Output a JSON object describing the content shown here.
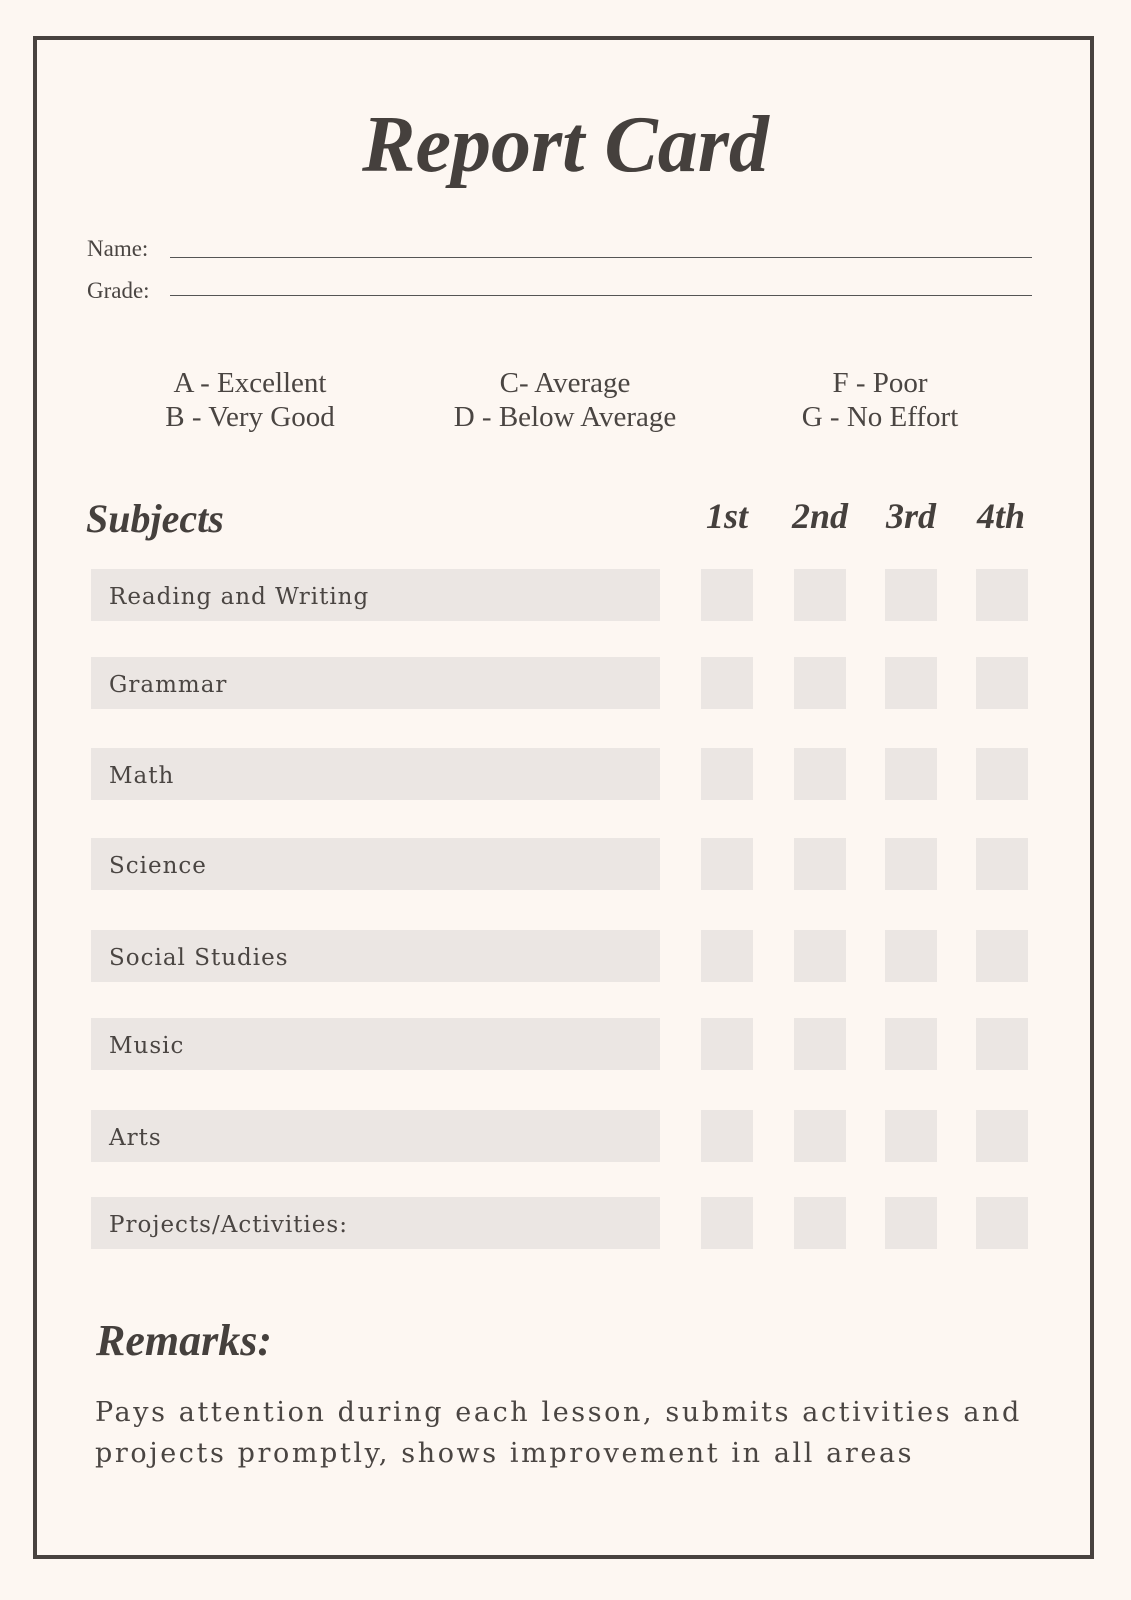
{
  "title": "Report Card",
  "fields": {
    "name_label": "Name:",
    "grade_label": "Grade:"
  },
  "legend": [
    {
      "line1": "A - Excellent",
      "line2": "B - Very Good"
    },
    {
      "line1": "C- Average",
      "line2": "D - Below Average"
    },
    {
      "line1": "F - Poor",
      "line2": "G - No Effort"
    }
  ],
  "table": {
    "header": "Subjects",
    "quarters": [
      "1st",
      "2nd",
      "3rd",
      "4th"
    ],
    "subjects": [
      "Reading and Writing",
      "Grammar",
      "Math",
      "Science",
      "Social Studies",
      "Music",
      "Arts",
      "Projects/Activities:"
    ]
  },
  "remarks": {
    "heading": "Remarks:",
    "text": "Pays attention during each lesson, submits activities and projects promptly, shows improvement in all areas"
  }
}
